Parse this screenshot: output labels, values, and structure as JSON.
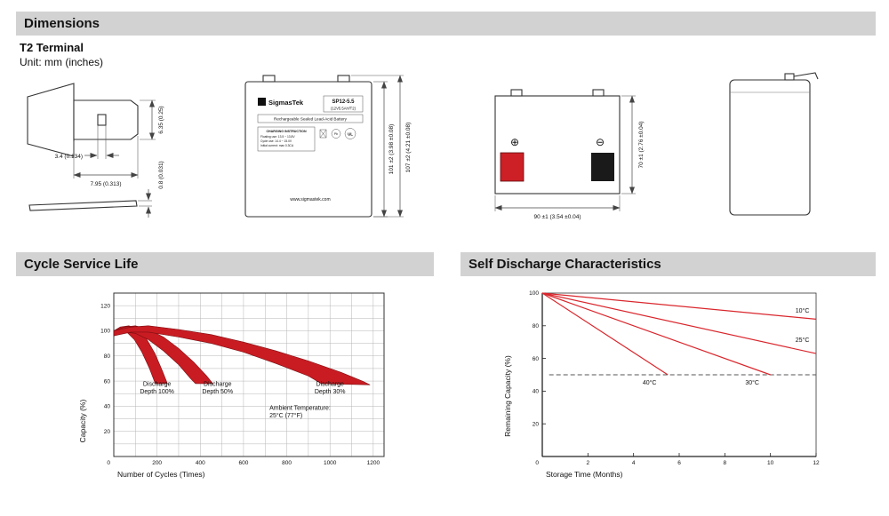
{
  "colors": {
    "header_bg": "#d2d2d2",
    "band_red": "#c81c22",
    "line_red": "#d9262c",
    "terminal_red": "#cc2026",
    "terminal_black": "#1a1a1a"
  },
  "headers": {
    "dimensions": "Dimensions",
    "cycle": "Cycle Service Life",
    "self_discharge": "Self Discharge Characteristics"
  },
  "dimensions_section": {
    "subtitle": "T2 Terminal",
    "unit_note": "Unit: mm (inches)",
    "terminal_detail": {
      "hole_width": "3.4 (0.134)",
      "blade_width": "7.95 (0.313)",
      "blade_height": "6.35 (0.25)",
      "blade_thickness": "0.8 (0.031)"
    },
    "front_view": {
      "label": {
        "logo_letter": "S",
        "brand": "SigmasTek",
        "model": "SP12-5.5",
        "spec": "(12V5.5AH/T2)",
        "battery_type": "Rechargeable Sealed Lead-Acid Battery",
        "charging_title": "CHARGING INSTRUCTION",
        "charging_line1": "Floating use: 13.5 ~ 13.8V",
        "charging_line2": "Cycle use: 14.4 ~ 15.0V",
        "charging_line3": "Initial current: max 0.3CA",
        "pb_label": "Pb",
        "ul_label": "UL",
        "website": "www.sigmastek.com"
      },
      "case_height": "101 ±2 (3.98 ±0.08)",
      "total_height": "107 ±2 (4.21 ±0.08)"
    },
    "top_view": {
      "plus_mark": "⊕",
      "minus_mark": "⊖",
      "height": "70 ±1 (2.76 ±0.04)",
      "width": "90 ±1 (3.54 ±0.04)"
    }
  },
  "chart_data": [
    {
      "type": "area",
      "title": "Cycle Service Life",
      "xlabel": "Number of Cycles (Times)",
      "ylabel": "Capacity (%)",
      "xlim": [
        0,
        1250
      ],
      "ylim": [
        0,
        130
      ],
      "xticks": [
        200,
        400,
        600,
        800,
        1000,
        1200
      ],
      "yticks": [
        20,
        40,
        60,
        80,
        100,
        120
      ],
      "origin_label": "0",
      "grid": {
        "x_step": 100,
        "y_step": 10
      },
      "band_color": "#c81c22",
      "series": [
        {
          "name": "Discharge Depth 100%",
          "upper": [
            [
              0,
              100
            ],
            [
              30,
              103
            ],
            [
              70,
              104
            ],
            [
              110,
              101
            ],
            [
              150,
              94
            ],
            [
              190,
              82
            ],
            [
              225,
              68
            ],
            [
              248,
              58
            ]
          ],
          "lower": [
            [
              0,
              96
            ],
            [
              30,
              99
            ],
            [
              60,
              99
            ],
            [
              95,
              93
            ],
            [
              130,
              83
            ],
            [
              165,
              70
            ],
            [
              192,
              58
            ]
          ]
        },
        {
          "name": "Discharge Depth 50%",
          "upper": [
            [
              0,
              100
            ],
            [
              50,
              103
            ],
            [
              100,
              104
            ],
            [
              160,
              101
            ],
            [
              230,
              95
            ],
            [
              300,
              86
            ],
            [
              370,
              75
            ],
            [
              430,
              64
            ],
            [
              458,
              58
            ]
          ],
          "lower": [
            [
              0,
              96
            ],
            [
              50,
              99
            ],
            [
              100,
              98
            ],
            [
              160,
              93
            ],
            [
              230,
              84
            ],
            [
              300,
              73
            ],
            [
              355,
              62
            ],
            [
              378,
              58
            ]
          ]
        },
        {
          "name": "Discharge Depth 30%",
          "upper": [
            [
              0,
              100
            ],
            [
              80,
              103
            ],
            [
              160,
              104
            ],
            [
              300,
              101
            ],
            [
              450,
              97
            ],
            [
              600,
              91
            ],
            [
              750,
              84
            ],
            [
              900,
              76
            ],
            [
              1050,
              67
            ],
            [
              1150,
              60
            ],
            [
              1185,
              57
            ]
          ],
          "lower": [
            [
              0,
              96
            ],
            [
              80,
              99
            ],
            [
              160,
              99
            ],
            [
              300,
              95
            ],
            [
              450,
              90
            ],
            [
              600,
              83
            ],
            [
              750,
              74
            ],
            [
              900,
              64
            ],
            [
              960,
              58
            ]
          ]
        }
      ],
      "annotations": [
        {
          "lines": [
            "Discharge",
            "Depth 100%"
          ],
          "x": 200,
          "y": 56,
          "anchor": "middle"
        },
        {
          "lines": [
            "Discharge",
            "Depth 50%"
          ],
          "x": 480,
          "y": 56,
          "anchor": "middle"
        },
        {
          "lines": [
            "Discharge",
            "Depth 30%"
          ],
          "x": 1000,
          "y": 56,
          "anchor": "middle"
        },
        {
          "lines": [
            "Ambient Temperature:",
            "25°C (77°F)"
          ],
          "x": 720,
          "y": 37,
          "anchor": "start"
        }
      ]
    },
    {
      "type": "line",
      "title": "Self Discharge Characteristics",
      "xlabel": "Storage Time (Months)",
      "ylabel": "Remaining Capacity (%)",
      "xlim": [
        0,
        12
      ],
      "ylim": [
        0,
        100
      ],
      "xticks": [
        2,
        4,
        6,
        8,
        10,
        12
      ],
      "yticks": [
        20,
        40,
        60,
        80,
        100
      ],
      "origin_label": "0",
      "line_color": "#d9262c",
      "series": [
        {
          "name": "10°C",
          "points": [
            [
              0,
              100
            ],
            [
              12,
              84
            ]
          ]
        },
        {
          "name": "25°C",
          "points": [
            [
              0,
              100
            ],
            [
              12,
              63
            ]
          ]
        },
        {
          "name": "30°C",
          "points": [
            [
              0,
              100
            ],
            [
              10,
              50
            ]
          ]
        },
        {
          "name": "40°C",
          "points": [
            [
              0,
              100
            ],
            [
              5.5,
              50
            ]
          ]
        }
      ],
      "reference_line": {
        "y": 50,
        "x_start": 0.3,
        "x_end": 12
      },
      "labels": [
        {
          "text": "10°C",
          "x": 11.4,
          "y": 88
        },
        {
          "text": "25°C",
          "x": 11.4,
          "y": 70
        },
        {
          "text": "40°C",
          "x": 4.7,
          "y": 44
        },
        {
          "text": "30°C",
          "x": 9.2,
          "y": 44
        }
      ]
    }
  ]
}
